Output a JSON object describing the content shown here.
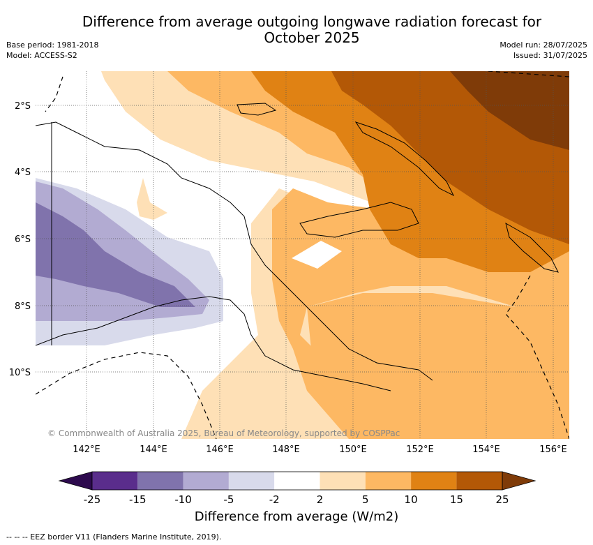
{
  "title": "Difference from average outgoing longwave radiation forecast for October 2025",
  "meta": {
    "base_period": "Base period: 1981-2018",
    "model": "Model: ACCESS-S2",
    "model_run": "Model run: 28/07/2025",
    "issued": "Issued: 31/07/2025"
  },
  "map": {
    "lon_labels": [
      "142°E",
      "144°E",
      "146°E",
      "148°E",
      "150°E",
      "152°E",
      "154°E",
      "156°E"
    ],
    "lat_labels": [
      "2°S",
      "4°S",
      "6°S",
      "8°S",
      "10°S"
    ],
    "copyright": "© Commonwealth of Australia 2025, Bureau of Meteorology, supported by COSPPac"
  },
  "colorbar": {
    "title": "Difference from average (W/m2)",
    "tick_labels": [
      "-25",
      "-15",
      "-10",
      "-5",
      "-2",
      "2",
      "5",
      "10",
      "15",
      "25"
    ],
    "colors": [
      "#2d0a4e",
      "#5a2d8c",
      "#8073ac",
      "#b2abd2",
      "#d8daeb",
      "#ffffff",
      "#fee0b6",
      "#fdb863",
      "#e08214",
      "#b35806",
      "#7f3b08"
    ]
  },
  "footer": {
    "eez_note": "--  --  -- EEZ border V11 (Flanders Marine Institute, 2019)."
  }
}
